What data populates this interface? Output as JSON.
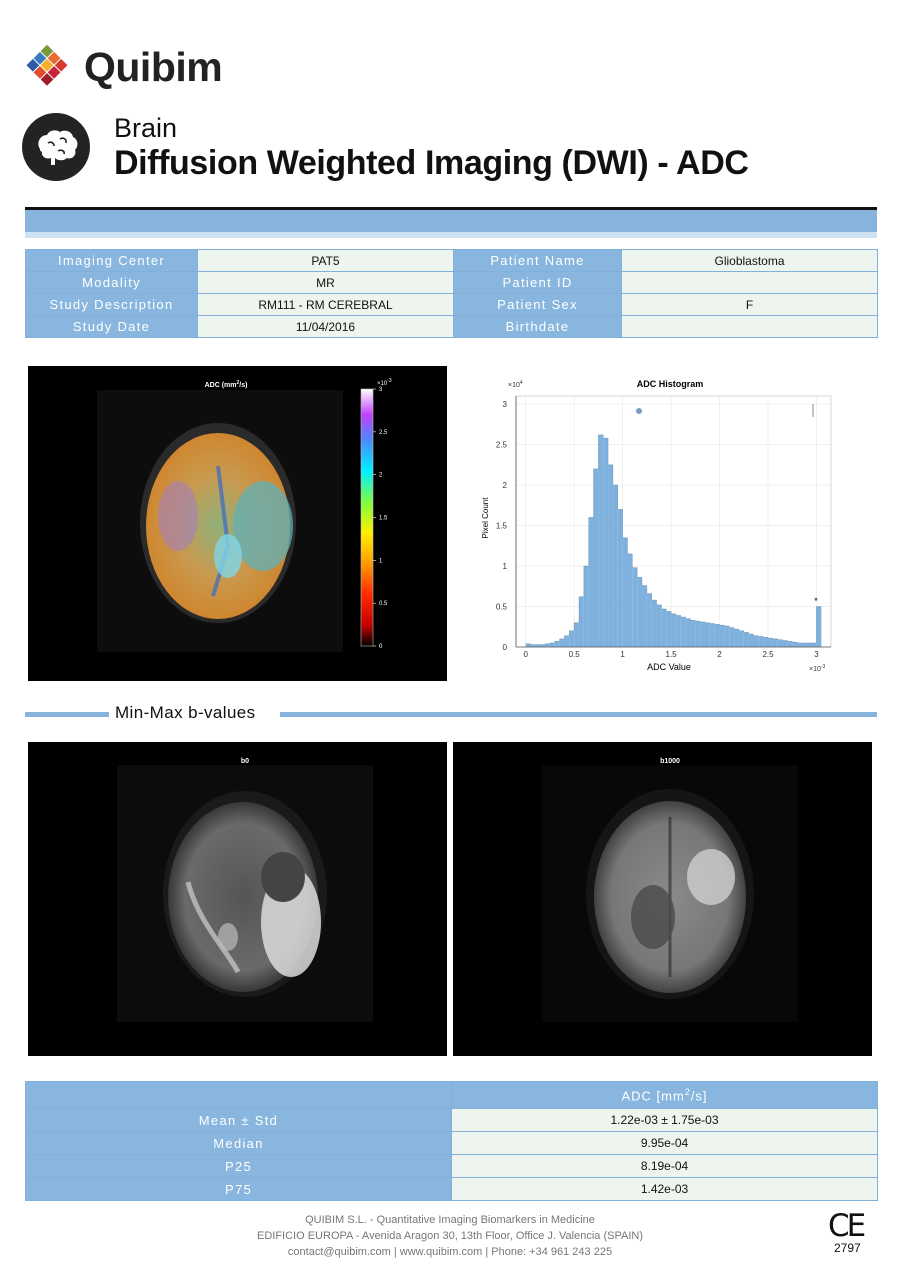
{
  "header": {
    "brand": "Quibim",
    "organ": "Brain",
    "title": "Diffusion Weighted Imaging (DWI) - ADC"
  },
  "info": {
    "rows": [
      {
        "l1": "Imaging Center",
        "v1": "PAT5",
        "l2": "Patient Name",
        "v2": "Glioblastoma"
      },
      {
        "l1": "Modality",
        "v1": "MR",
        "l2": "Patient ID",
        "v2": ""
      },
      {
        "l1": "Study Description",
        "v1": "RM111 - RM CEREBRAL",
        "l2": "Patient Sex",
        "v2": "F"
      },
      {
        "l1": "Study Date",
        "v1": "11/04/2016",
        "l2": "Birthdate",
        "v2": ""
      }
    ]
  },
  "adc_map": {
    "title": "ADC (mm",
    "title_sup": "2",
    "title_end": "/s)",
    "scale_exp": "×10",
    "scale_exp_sup": "-3",
    "ticks": [
      "3",
      "2.5",
      "2",
      "1.5",
      "1",
      "0.5",
      "0"
    ]
  },
  "chart_data": {
    "type": "bar",
    "title": "ADC Histogram",
    "xlabel": "ADC Value",
    "ylabel": "Pixel Count",
    "x_multiplier": "×10",
    "x_multiplier_sup": "-3",
    "y_multiplier": "×10",
    "y_multiplier_sup": "4",
    "xlim": [
      -0.1,
      3.15
    ],
    "ylim": [
      0,
      3.1
    ],
    "xticks": [
      "0",
      "0.5",
      "1",
      "1.5",
      "2",
      "2.5",
      "3"
    ],
    "yticks": [
      "0",
      "0.5",
      "1",
      "1.5",
      "2",
      "2.5",
      "3"
    ],
    "bin_width": 0.05,
    "bins_x": [
      0.0,
      0.05,
      0.1,
      0.15,
      0.2,
      0.25,
      0.3,
      0.35,
      0.4,
      0.45,
      0.5,
      0.55,
      0.6,
      0.65,
      0.7,
      0.75,
      0.8,
      0.85,
      0.9,
      0.95,
      1.0,
      1.05,
      1.1,
      1.15,
      1.2,
      1.25,
      1.3,
      1.35,
      1.4,
      1.45,
      1.5,
      1.55,
      1.6,
      1.65,
      1.7,
      1.75,
      1.8,
      1.85,
      1.9,
      1.95,
      2.0,
      2.05,
      2.1,
      2.15,
      2.2,
      2.25,
      2.3,
      2.35,
      2.4,
      2.45,
      2.5,
      2.55,
      2.6,
      2.65,
      2.7,
      2.75,
      2.8,
      2.85,
      2.9,
      2.95,
      3.0
    ],
    "values": [
      0.04,
      0.03,
      0.03,
      0.03,
      0.04,
      0.05,
      0.07,
      0.1,
      0.14,
      0.2,
      0.3,
      0.62,
      1.0,
      1.6,
      2.2,
      2.62,
      2.58,
      2.25,
      2.0,
      1.7,
      1.35,
      1.15,
      0.98,
      0.86,
      0.76,
      0.66,
      0.58,
      0.52,
      0.47,
      0.44,
      0.41,
      0.39,
      0.37,
      0.35,
      0.33,
      0.32,
      0.31,
      0.3,
      0.29,
      0.28,
      0.27,
      0.26,
      0.24,
      0.22,
      0.2,
      0.18,
      0.16,
      0.14,
      0.13,
      0.12,
      0.11,
      0.1,
      0.09,
      0.08,
      0.07,
      0.06,
      0.05,
      0.05,
      0.05,
      0.05,
      0.5
    ],
    "star_label": "*",
    "color": "#7eb1de"
  },
  "section": {
    "label": "Min-Max b-values"
  },
  "bvalues": {
    "b0": "b0",
    "b1000": "b1000"
  },
  "stats": {
    "header": "ADC [mm",
    "header_sup": "2",
    "header_end": "/s]",
    "rows": [
      {
        "label": "Mean ± Std",
        "value": "1.22e-03 ±  1.75e-03"
      },
      {
        "label": "Median",
        "value": "9.95e-04"
      },
      {
        "label": "P25",
        "value": "8.19e-04"
      },
      {
        "label": "P75",
        "value": "1.42e-03"
      }
    ]
  },
  "footer": {
    "line1": "QUIBIM S.L. - Quantitative Imaging Biomarkers in Medicine",
    "line2": "EDIFICIO EUROPA - Avenida Aragon 30, 13th Floor, Office J. Valencia (SPAIN)",
    "line3": "contact@quibim.com  |  www.quibim.com  |    Phone: +34 961 243 225",
    "ce_mark": "CE",
    "ce_number": "2797"
  }
}
